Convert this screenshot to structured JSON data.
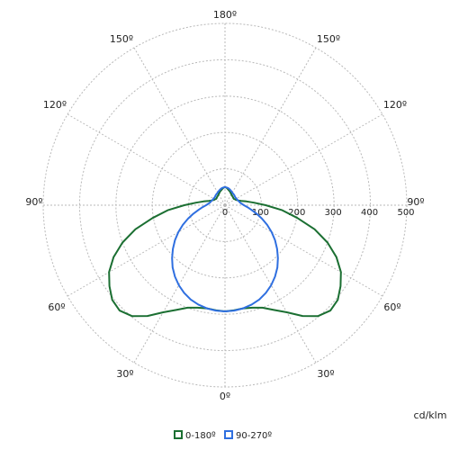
{
  "chart_data": {
    "type": "polar",
    "unit": "cd/klm",
    "radial_ticks": [
      0,
      100,
      200,
      300,
      400,
      500
    ],
    "radial_max": 500,
    "angle_labels": {
      "top": "180º",
      "upper_left": "150º",
      "upper_right": "150º",
      "mid_upper_left": "120º",
      "mid_upper_right": "120º",
      "left": "90º",
      "right": "90º",
      "mid_lower_left": "60º",
      "mid_lower_right": "60º",
      "lower_left": "30º",
      "lower_right": "30º",
      "bottom": "0º"
    },
    "grid": true,
    "legend_position": "bottom-center",
    "series": [
      {
        "name": "0-180º",
        "color": "#1b6f32",
        "angles": [
          0,
          5,
          10,
          15,
          20,
          25,
          30,
          35,
          40,
          45,
          50,
          55,
          60,
          65,
          70,
          75,
          80,
          85,
          90,
          95,
          100,
          105,
          110,
          115,
          120,
          125,
          130,
          135,
          140,
          145,
          150,
          155,
          160,
          165,
          170,
          175,
          180
        ],
        "values": [
          292,
          290,
          288,
          292,
          300,
          318,
          340,
          372,
          398,
          410,
          405,
          388,
          368,
          338,
          300,
          255,
          202,
          158,
          112,
          80,
          60,
          46,
          38,
          34,
          32,
          30,
          30,
          31,
          32,
          33,
          35,
          37,
          40,
          42,
          45,
          48,
          50
        ]
      },
      {
        "name": "90-270º",
        "color": "#2f6fe0",
        "angles": [
          0,
          5,
          10,
          15,
          20,
          25,
          30,
          35,
          40,
          45,
          50,
          55,
          60,
          65,
          70,
          75,
          80,
          85,
          90,
          95,
          100,
          105,
          110,
          115,
          120,
          125,
          130,
          135,
          140,
          145,
          150,
          155,
          160,
          165,
          170,
          175,
          180
        ],
        "values": [
          292,
          291,
          288,
          283,
          276,
          266,
          254,
          240,
          224,
          206,
          187,
          168,
          148,
          128,
          108,
          90,
          74,
          62,
          52,
          46,
          42,
          40,
          38,
          37,
          36,
          36,
          36,
          37,
          38,
          39,
          40,
          42,
          44,
          46,
          48,
          49,
          50
        ]
      }
    ]
  }
}
